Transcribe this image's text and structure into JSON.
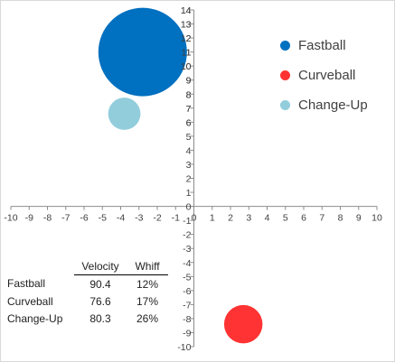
{
  "chart_data": {
    "type": "bubble",
    "xlim": [
      -10,
      10
    ],
    "ylim": [
      -10,
      14
    ],
    "x_ticks": [
      -10,
      -9,
      -8,
      -7,
      -6,
      -5,
      -4,
      -3,
      -2,
      -1,
      0,
      1,
      2,
      3,
      4,
      5,
      6,
      7,
      8,
      9,
      10
    ],
    "y_ticks": [
      -10,
      -9,
      -8,
      -7,
      -6,
      -5,
      -4,
      -3,
      -2,
      -1,
      0,
      1,
      2,
      3,
      4,
      5,
      6,
      7,
      8,
      9,
      10,
      11,
      12,
      13,
      14
    ],
    "series": [
      {
        "name": "Fastball",
        "x": -2.8,
        "y": 11,
        "size": 90.4,
        "color": "#0070c0"
      },
      {
        "name": "Curveball",
        "x": 2.7,
        "y": -8.4,
        "size": 17,
        "color": "#ff3333"
      },
      {
        "name": "Change-Up",
        "x": -3.8,
        "y": 6.6,
        "size": 12,
        "color": "#92cddc"
      }
    ],
    "legend_position": "top-right",
    "grid": false
  },
  "table": {
    "headers": [
      "Velocity",
      "Whiff"
    ],
    "rows": [
      {
        "name": "Fastball",
        "velocity": "90.4",
        "whiff": "12%"
      },
      {
        "name": "Curveball",
        "velocity": "76.6",
        "whiff": "17%"
      },
      {
        "name": "Change-Up",
        "velocity": "80.3",
        "whiff": "26%"
      }
    ]
  }
}
